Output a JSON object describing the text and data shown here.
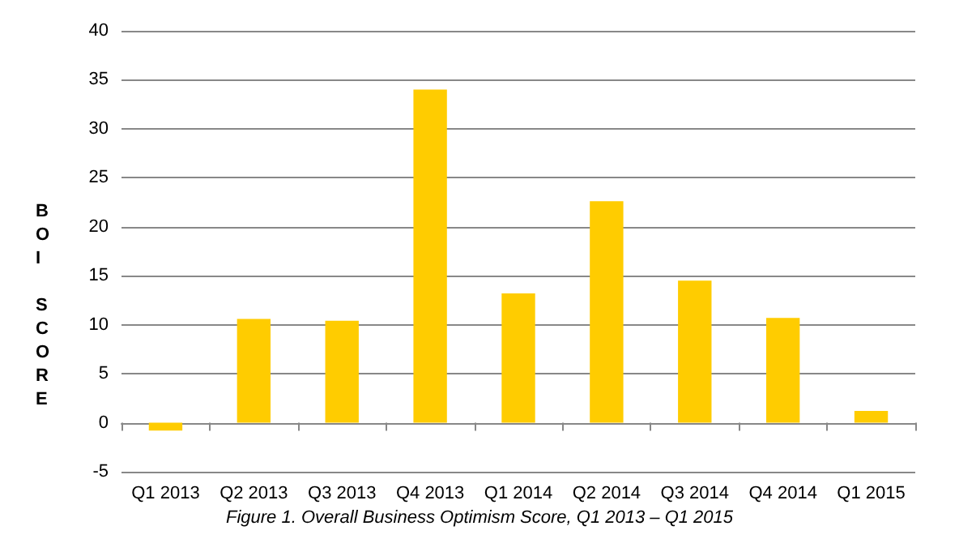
{
  "chart_data": {
    "type": "bar",
    "ylabel": "BOI SCORE",
    "categories": [
      "Q1 2013",
      "Q2 2013",
      "Q3 2013",
      "Q4 2013",
      "Q1 2014",
      "Q2 2014",
      "Q3 2014",
      "Q4 2014",
      "Q1 2015"
    ],
    "values": [
      -0.8,
      10.6,
      10.4,
      34.0,
      13.2,
      22.6,
      14.5,
      10.7,
      1.2
    ],
    "color": "#ffcc00",
    "ylim": [
      -5,
      40
    ],
    "yticks": [
      -5,
      0,
      5,
      10,
      15,
      20,
      25,
      30,
      35,
      40
    ],
    "grid": "y",
    "annotations": [
      "Figure 1. Overall Business Optimism Score, Q1 2013 – Q1 2015"
    ]
  }
}
